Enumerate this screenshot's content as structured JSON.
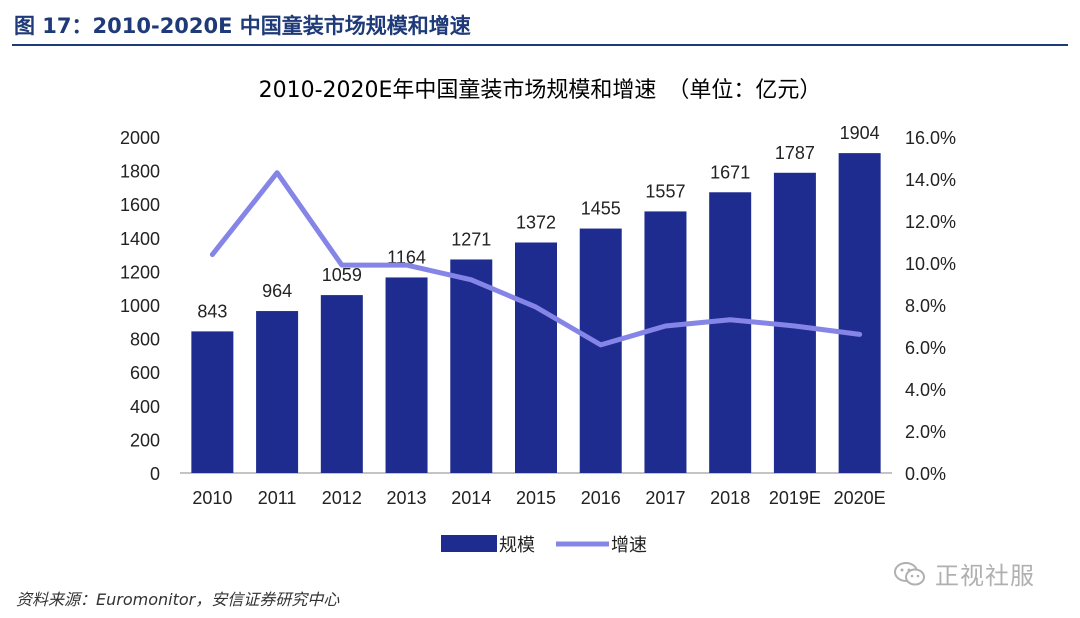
{
  "figure_label": "图 17：2010-2020E 中国童装市场规模和增速",
  "source_note": "资料来源：Euromonitor，安信证券研究中心",
  "watermark_text": "正视社服",
  "colors": {
    "bar": "#1f2c8f",
    "line": "#8585e8",
    "header": "#1f3a78",
    "axis_text": "#222222"
  },
  "chart_data": {
    "type": "bar",
    "title": "2010-2020E年中国童装市场规模和增速　（单位：亿元）",
    "categories": [
      "2010",
      "2011",
      "2012",
      "2013",
      "2014",
      "2015",
      "2016",
      "2017",
      "2018",
      "2019E",
      "2020E"
    ],
    "series": [
      {
        "name": "规模",
        "type": "bar",
        "axis": "left",
        "values": [
          843,
          964,
          1059,
          1164,
          1271,
          1372,
          1455,
          1557,
          1671,
          1787,
          1904
        ]
      },
      {
        "name": "增速",
        "type": "line",
        "axis": "right",
        "values": [
          10.4,
          14.3,
          9.9,
          9.9,
          9.2,
          7.9,
          6.1,
          7.0,
          7.3,
          7.0,
          6.6
        ]
      }
    ],
    "left_axis": {
      "ylim": [
        0,
        2000
      ],
      "ticks": [
        "0",
        "200",
        "400",
        "600",
        "800",
        "1000",
        "1200",
        "1400",
        "1600",
        "1800",
        "2000"
      ]
    },
    "right_axis": {
      "ylim": [
        0,
        16
      ],
      "ticks": [
        "0.0%",
        "2.0%",
        "4.0%",
        "6.0%",
        "8.0%",
        "10.0%",
        "12.0%",
        "14.0%",
        "16.0%"
      ]
    },
    "data_labels": [
      "843",
      "964",
      "1059",
      "1164",
      "1271",
      "1372",
      "1455",
      "1557",
      "1671",
      "1787",
      "1904"
    ],
    "legend": [
      "规模",
      "增速"
    ],
    "legend_position": "bottom",
    "grid": false
  }
}
